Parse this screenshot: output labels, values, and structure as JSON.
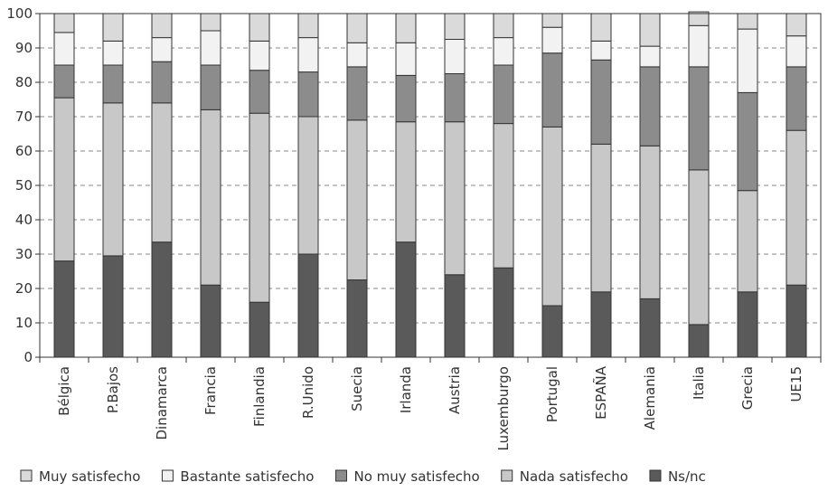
{
  "chart_data": {
    "type": "bar",
    "stacked": true,
    "title": "",
    "xlabel": "",
    "ylabel": "",
    "ylim": [
      0,
      100
    ],
    "yticks": [
      0,
      10,
      20,
      30,
      40,
      50,
      60,
      70,
      80,
      90,
      100
    ],
    "grid": true,
    "legend_position": "bottom",
    "categories": [
      "Bélgica",
      "P.Bajos",
      "Dinamarca",
      "Francia",
      "Finlandia",
      "R.Unido",
      "Suecia",
      "Irlanda",
      "Austria",
      "Luxemburgo",
      "Portugal",
      "ESPAÑA",
      "Alemania",
      "Italia",
      "Grecia",
      "UE15"
    ],
    "series": [
      {
        "name": "Ns/nc",
        "color": "#5a5a5a",
        "values": [
          28,
          29.5,
          33.5,
          21,
          16,
          30,
          22.5,
          33.5,
          24,
          26,
          15,
          19,
          17,
          9.5,
          19,
          21
        ]
      },
      {
        "name": "Nada satisfecho",
        "color": "#c8c8c8",
        "values": [
          47.5,
          44.5,
          40.5,
          51,
          55,
          40,
          46.5,
          35,
          44.5,
          42,
          52,
          43,
          44.5,
          45,
          29.5,
          45
        ]
      },
      {
        "name": "No muy satisfecho",
        "color": "#8c8c8c",
        "values": [
          9.5,
          11,
          12,
          13,
          12.5,
          13,
          15.5,
          13.5,
          14,
          17,
          21.5,
          24.5,
          23,
          30,
          28.5,
          18.5
        ]
      },
      {
        "name": "Bastante satisfecho",
        "color": "#f2f2f2",
        "values": [
          9.5,
          7,
          7,
          10,
          8.5,
          10,
          7,
          9.5,
          10,
          8,
          7.5,
          5.5,
          6,
          12,
          18.5,
          9
        ]
      },
      {
        "name": "Muy satisfecho",
        "color": "#dadada",
        "values": [
          5.5,
          8,
          7,
          5,
          8,
          7,
          8.5,
          8.5,
          7.5,
          7,
          4,
          8,
          9.5,
          4,
          4.5,
          6.5
        ]
      }
    ],
    "legend_order": [
      "Muy satisfecho",
      "Bastante satisfecho",
      "No muy satisfecho",
      "Nada satisfecho",
      "Ns/nc"
    ]
  }
}
